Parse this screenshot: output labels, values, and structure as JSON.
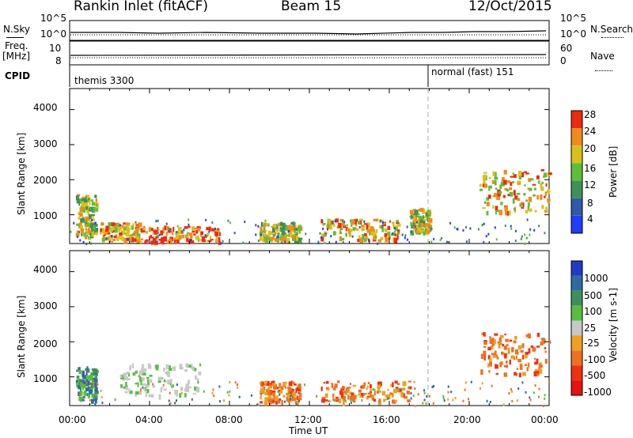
{
  "header": {
    "station": "Rankin Inlet (fitACF)",
    "beam": "Beam 15",
    "date": "12/Oct/2015"
  },
  "noise_panel": {
    "left_label": "N.Sky",
    "right_label": "N.Search",
    "left_ticks": [
      "10^5",
      "10^0"
    ],
    "right_ticks": [
      "10^5",
      "10^0"
    ]
  },
  "freq_panel": {
    "left_label_1": "Freq.",
    "left_label_2": "[MHz]",
    "right_label": "Nave",
    "left_ticks": [
      "10",
      "8"
    ],
    "right_ticks": [
      "60",
      "0"
    ]
  },
  "cpid": {
    "label": "CPID",
    "mode_1": "themis 3300",
    "mode_2": "normal (fast) 151",
    "switch_time_hours": 18.0
  },
  "chart_data": [
    {
      "type": "heatmap",
      "name": "power",
      "ylabel": "Slant Range [km]",
      "xlabel": "",
      "xlim_hours": [
        0,
        24
      ],
      "ylim_km": [
        180,
        4600
      ],
      "yticks": [
        "1000",
        "2000",
        "3000",
        "4000"
      ],
      "colorbar": {
        "label": "Power [dB]",
        "ticks": [
          "4",
          "8",
          "12",
          "16",
          "20",
          "24",
          "28"
        ],
        "colors": [
          "#1f3dff",
          "#2f5aa8",
          "#3f8f5a",
          "#5bbf3a",
          "#d8c21a",
          "#f28a1a",
          "#ee2a10"
        ]
      },
      "features": [
        {
          "t": [
            0.3,
            1.3
          ],
          "r": [
            350,
            1600
          ],
          "level": "medium"
        },
        {
          "t": [
            1.5,
            3.5
          ],
          "r": [
            300,
            800
          ],
          "level": "high"
        },
        {
          "t": [
            3.5,
            7.5
          ],
          "r": [
            250,
            700
          ],
          "level": "very high"
        },
        {
          "t": [
            9.5,
            11.5
          ],
          "r": [
            300,
            800
          ],
          "level": "medium"
        },
        {
          "t": [
            12.5,
            16.5
          ],
          "r": [
            300,
            900
          ],
          "level": "high"
        },
        {
          "t": [
            17,
            18
          ],
          "r": [
            500,
            1200
          ],
          "level": "medium"
        },
        {
          "t": [
            20.5,
            24
          ],
          "r": [
            1100,
            2300
          ],
          "level": "high"
        }
      ]
    },
    {
      "type": "heatmap",
      "name": "velocity",
      "ylabel": "Slant Range [km]",
      "xlabel": "Time UT",
      "xlim_hours": [
        0,
        24
      ],
      "ylim_km": [
        180,
        4600
      ],
      "xticks": [
        "00:00",
        "04:00",
        "08:00",
        "12:00",
        "16:00",
        "20:00",
        "00:00"
      ],
      "yticks": [
        "1000",
        "2000",
        "3000",
        "4000"
      ],
      "colorbar": {
        "label": "Velocity [m s-1]",
        "ticks": [
          "1000",
          "500",
          "100",
          "25",
          "-25",
          "-100",
          "-500",
          "-1000"
        ],
        "colors": [
          "#1e3cc8",
          "#2f6aa0",
          "#3f8f5a",
          "#55c040",
          "#c8c8c8",
          "#f0a020",
          "#f07020",
          "#f03010",
          "#e81010"
        ]
      },
      "features": [
        {
          "t": [
            0.3,
            1.3
          ],
          "r": [
            350,
            1300
          ],
          "level": "positive"
        },
        {
          "t": [
            2.5,
            6.5
          ],
          "r": [
            500,
            1400
          ],
          "level": "ground scatter"
        },
        {
          "t": [
            9.5,
            11.5
          ],
          "r": [
            300,
            900
          ],
          "level": "negative"
        },
        {
          "t": [
            12.5,
            17
          ],
          "r": [
            300,
            900
          ],
          "level": "negative"
        },
        {
          "t": [
            20.5,
            24
          ],
          "r": [
            1100,
            2300
          ],
          "level": "negative"
        }
      ]
    }
  ]
}
